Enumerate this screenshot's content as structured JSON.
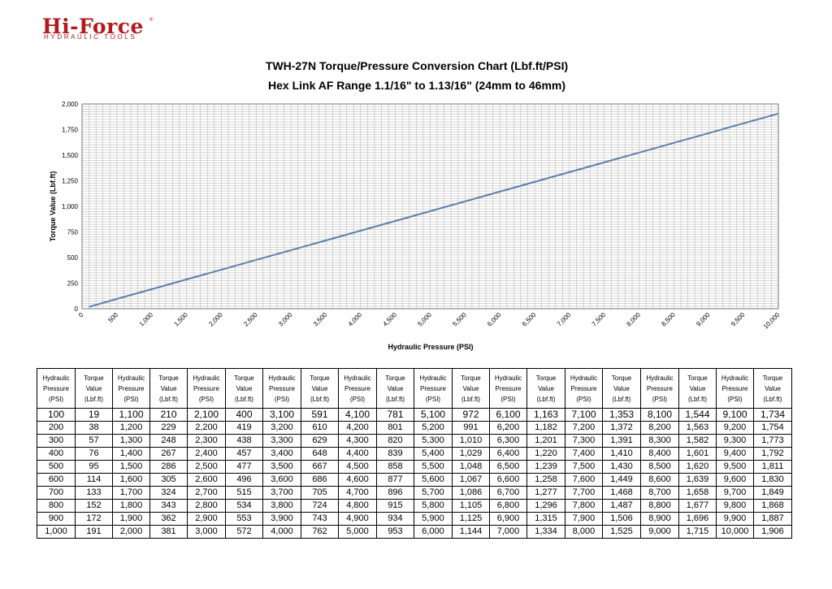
{
  "logo": {
    "main": "Hi-Force",
    "reg": "®",
    "sub": "HYDRAULIC TOOLS"
  },
  "stray_mark": "",
  "chart_data": {
    "type": "line",
    "title": "TWH-27N Torque/Pressure Conversion Chart (Lbf.ft/PSI)",
    "subtitle": "Hex Link AF Range 1.1/16\" to 1.13/16\" (24mm to 46mm)",
    "xlabel": "Hydraulic Pressure (PSI)",
    "ylabel": "Torque Value (Lbf.ft)",
    "xlim": [
      0,
      10000
    ],
    "ylim": [
      0,
      2000
    ],
    "xticks": [
      "0",
      "500",
      "1,000",
      "1,500",
      "2,000",
      "2,500",
      "3,000",
      "3,500",
      "4,000",
      "4,500",
      "5,000",
      "5,500",
      "6,000",
      "6,500",
      "7,000",
      "7,500",
      "8,000",
      "8,500",
      "9,000",
      "9,500",
      "10,000"
    ],
    "yticks": [
      "0",
      "250",
      "500",
      "750",
      "1,000",
      "1,250",
      "1,500",
      "1,750",
      "2,000"
    ],
    "grid": true,
    "legend": "none",
    "line_color": "#5b7fa8",
    "series": [
      {
        "x": [
          100,
          10000
        ],
        "y": [
          19,
          1906
        ]
      }
    ]
  },
  "table": {
    "header_cells": [
      [
        "Hydraulic",
        "Pressure",
        "(PSI)"
      ],
      [
        "Torque",
        "Value",
        "(Lbf.ft)"
      ],
      [
        "Hydraulic",
        "Pressure",
        "(PSI)"
      ],
      [
        "Torque",
        "Value",
        "(Lbf.ft)"
      ],
      [
        "Hydraulic",
        "Pressure",
        "(PSI)"
      ],
      [
        "Torque",
        "Value",
        "(Lbf.ft)"
      ],
      [
        "Hydraulic",
        "Pressure",
        "(PSI)"
      ],
      [
        "Torque",
        "Value",
        "(Lbf.ft)"
      ],
      [
        "Hydraulic",
        "Pressure",
        "(PSI)"
      ],
      [
        "Torque",
        "Value",
        "(Lbf.ft)"
      ],
      [
        "Hydraulic",
        "Pressure",
        "(PSI)"
      ],
      [
        "Torque",
        "Value",
        "(Lbf.ft)"
      ],
      [
        "Hydraulic",
        "Pressure",
        "(PSI)"
      ],
      [
        "Torque",
        "Value",
        "(Lbf.ft)"
      ],
      [
        "Hydraulic",
        "Pressure",
        "(PSI)"
      ],
      [
        "Torque",
        "Value",
        "(Lbf.ft)"
      ],
      [
        "Hydraulic",
        "Pressure",
        "(PSI)"
      ],
      [
        "Torque",
        "Value",
        "(Lbf.ft)"
      ],
      [
        "Hydraulic",
        "Pressure",
        "(PSI)"
      ],
      [
        "Torque",
        "Value",
        "(Lbf.ft)"
      ]
    ],
    "rows": [
      [
        "100",
        "19",
        "1,100",
        "210",
        "2,100",
        "400",
        "3,100",
        "591",
        "4,100",
        "781",
        "5,100",
        "972",
        "6,100",
        "1,163",
        "7,100",
        "1,353",
        "8,100",
        "1,544",
        "9,100",
        "1,734"
      ],
      [
        "200",
        "38",
        "1,200",
        "229",
        "2,200",
        "419",
        "3,200",
        "610",
        "4,200",
        "801",
        "5,200",
        "991",
        "6,200",
        "1,182",
        "7,200",
        "1,372",
        "8,200",
        "1,563",
        "9,200",
        "1,754"
      ],
      [
        "300",
        "57",
        "1,300",
        "248",
        "2,300",
        "438",
        "3,300",
        "629",
        "4,300",
        "820",
        "5,300",
        "1,010",
        "6,300",
        "1,201",
        "7,300",
        "1,391",
        "8,300",
        "1,582",
        "9,300",
        "1,773"
      ],
      [
        "400",
        "76",
        "1,400",
        "267",
        "2,400",
        "457",
        "3,400",
        "648",
        "4,400",
        "839",
        "5,400",
        "1,029",
        "6,400",
        "1,220",
        "7,400",
        "1,410",
        "8,400",
        "1,601",
        "9,400",
        "1,792"
      ],
      [
        "500",
        "95",
        "1,500",
        "286",
        "2,500",
        "477",
        "3,500",
        "667",
        "4,500",
        "858",
        "5,500",
        "1,048",
        "6,500",
        "1,239",
        "7,500",
        "1,430",
        "8,500",
        "1,620",
        "9,500",
        "1,811"
      ],
      [
        "600",
        "114",
        "1,600",
        "305",
        "2,600",
        "496",
        "3,600",
        "686",
        "4,600",
        "877",
        "5,600",
        "1,067",
        "6,600",
        "1,258",
        "7,600",
        "1,449",
        "8,600",
        "1,639",
        "9,600",
        "1,830"
      ],
      [
        "700",
        "133",
        "1,700",
        "324",
        "2,700",
        "515",
        "3,700",
        "705",
        "4,700",
        "896",
        "5,700",
        "1,086",
        "6,700",
        "1,277",
        "7,700",
        "1,468",
        "8,700",
        "1,658",
        "9,700",
        "1,849"
      ],
      [
        "800",
        "152",
        "1,800",
        "343",
        "2,800",
        "534",
        "3,800",
        "724",
        "4,800",
        "915",
        "5,800",
        "1,105",
        "6,800",
        "1,296",
        "7,800",
        "1,487",
        "8,800",
        "1,677",
        "9,800",
        "1,868"
      ],
      [
        "900",
        "172",
        "1,900",
        "362",
        "2,900",
        "553",
        "3,900",
        "743",
        "4,900",
        "934",
        "5,900",
        "1,125",
        "6,900",
        "1,315",
        "7,900",
        "1,506",
        "8,900",
        "1,696",
        "9,900",
        "1,887"
      ],
      [
        "1,000",
        "191",
        "2,000",
        "381",
        "3,000",
        "572",
        "4,000",
        "762",
        "5,000",
        "953",
        "6,000",
        "1,144",
        "7,000",
        "1,334",
        "8,000",
        "1,525",
        "9,000",
        "1,715",
        "10,000",
        "1,906"
      ]
    ]
  }
}
